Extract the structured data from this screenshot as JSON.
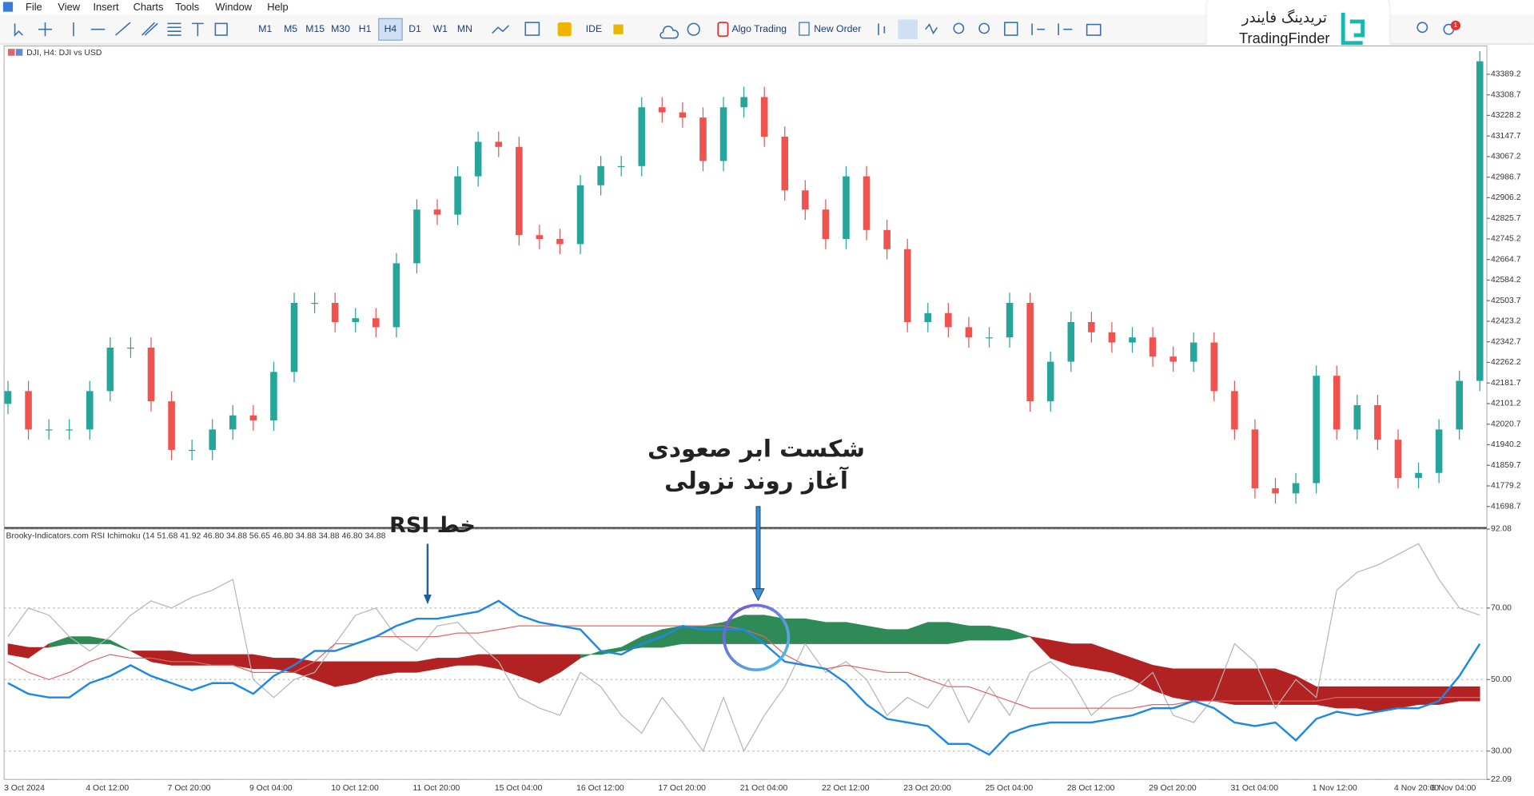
{
  "menu": [
    "File",
    "View",
    "Insert",
    "Charts",
    "Tools",
    "Window",
    "Help"
  ],
  "toolbar": {
    "timeframes": [
      "M1",
      "M5",
      "M15",
      "M30",
      "H1",
      "H4",
      "D1",
      "W1",
      "MN"
    ],
    "ide": "IDE",
    "algo_trading": "Algo Trading",
    "new_order": "New Order",
    "notification_count": 1
  },
  "logo": {
    "persian": "تریدینگ فایندر",
    "latin": "TradingFinder"
  },
  "annotations": {
    "cloud_break": "شکست ابر صعودی",
    "downtrend": "آغاز روند نزولی",
    "rsi_line": "خط RSI"
  },
  "chart_data": [
    {
      "type": "candlestick",
      "title": "DJI, H4:  DJI vs USD",
      "categories": [
        "3 Oct 2024",
        null,
        null,
        null,
        "4 Oct 12:00",
        null,
        null,
        null,
        "7 Oct 20:00",
        null,
        null,
        null,
        "9 Oct 04:00",
        null,
        null,
        null,
        "10 Oct 12:00",
        null,
        null,
        null,
        "11 Oct 20:00",
        null,
        null,
        null,
        "15 Oct 04:00",
        null,
        null,
        null,
        "16 Oct 12:00",
        null,
        null,
        null,
        "17 Oct 20:00",
        null,
        null,
        null,
        "21 Oct 04:00",
        null,
        null,
        null,
        "22 Oct 12:00",
        null,
        null,
        null,
        "23 Oct 20:00",
        null,
        null,
        null,
        "25 Oct 04:00",
        null,
        null,
        null,
        "28 Oct 12:00",
        null,
        null,
        null,
        "29 Oct 20:00",
        null,
        null,
        null,
        "31 Oct 04:00",
        null,
        null,
        null,
        "1 Nov 12:00",
        null,
        null,
        null,
        "4 Nov 20:00",
        null,
        null,
        null,
        "6 Nov 04:00"
      ],
      "open": [
        42100,
        42150,
        42000,
        42000,
        42000,
        42150,
        42320,
        42320,
        42110,
        41920,
        41920,
        42000,
        42055,
        42035,
        42225,
        42495,
        42495,
        42420,
        42435,
        42400,
        42650,
        42860,
        42840,
        42990,
        43125,
        43105,
        42760,
        42745,
        42725,
        42955,
        43030,
        43030,
        43260,
        43240,
        43220,
        43050,
        43260,
        43300,
        43145,
        42935,
        42860,
        42745,
        42990,
        42780,
        42705,
        42420,
        42455,
        42400,
        42360,
        42360,
        42495,
        42110,
        42265,
        42420,
        42380,
        42340,
        42360,
        42285,
        42265,
        42340,
        42150,
        42000,
        41770,
        41750,
        41790,
        42210,
        42000,
        42095,
        41960,
        41810,
        41830,
        42000,
        42190
      ],
      "high": [
        42190,
        42190,
        42040,
        42040,
        42190,
        42360,
        42360,
        42360,
        42150,
        41960,
        42040,
        42095,
        42095,
        42265,
        42535,
        42535,
        42535,
        42475,
        42475,
        42690,
        42900,
        42900,
        43030,
        43165,
        43165,
        43145,
        42800,
        42785,
        42995,
        43070,
        43070,
        43300,
        43300,
        43280,
        43260,
        43300,
        43340,
        43340,
        43185,
        42975,
        42900,
        43030,
        43030,
        42820,
        42745,
        42495,
        42495,
        42440,
        42400,
        42535,
        42535,
        42305,
        42460,
        42460,
        42420,
        42400,
        42400,
        42325,
        42380,
        42380,
        42190,
        42040,
        41810,
        41830,
        42250,
        42250,
        42135,
        42135,
        42000,
        41870,
        42040,
        42230,
        43480
      ],
      "low": [
        42060,
        41960,
        41960,
        41960,
        41960,
        42110,
        42280,
        42070,
        41880,
        41880,
        41880,
        41960,
        41995,
        41995,
        42185,
        42455,
        42380,
        42380,
        42360,
        42360,
        42610,
        42800,
        42800,
        42950,
        43065,
        42720,
        42705,
        42685,
        42685,
        42915,
        42990,
        42990,
        43200,
        43180,
        43010,
        43010,
        43220,
        43105,
        42895,
        42820,
        42705,
        42705,
        42740,
        42665,
        42380,
        42380,
        42360,
        42320,
        42320,
        42320,
        42070,
        42070,
        42225,
        42340,
        42300,
        42300,
        42245,
        42225,
        42225,
        42110,
        41960,
        41730,
        41710,
        41710,
        41750,
        41960,
        41960,
        41920,
        41770,
        41770,
        41790,
        41960,
        42150
      ],
      "close": [
        42150,
        42000,
        42000,
        42000,
        42150,
        42320,
        42320,
        42110,
        41920,
        41920,
        42000,
        42055,
        42035,
        42225,
        42495,
        42495,
        42420,
        42435,
        42400,
        42650,
        42860,
        42840,
        42990,
        43125,
        43105,
        42760,
        42745,
        42725,
        42955,
        43030,
        43030,
        43260,
        43240,
        43220,
        43050,
        43260,
        43300,
        43145,
        42935,
        42860,
        42745,
        42990,
        42780,
        42705,
        42420,
        42455,
        42400,
        42360,
        42360,
        42495,
        42110,
        42265,
        42420,
        42380,
        42340,
        42360,
        42285,
        42265,
        42340,
        42150,
        42000,
        41770,
        41750,
        41790,
        42210,
        42000,
        42095,
        41960,
        41810,
        41830,
        42000,
        42190,
        43440
      ],
      "up_color": "#26a69a",
      "down_color": "#ef5350",
      "ylim": [
        41622,
        43496
      ],
      "yticks": [
        43389.2,
        43308.7,
        43228.2,
        43147.7,
        43067.2,
        42986.7,
        42906.2,
        42825.7,
        42745.2,
        42664.7,
        42584.2,
        42503.7,
        42423.2,
        42342.7,
        42262.2,
        42181.7,
        42101.2,
        42020.7,
        41940.2,
        41859.7,
        41779.2,
        41698.7
      ],
      "grid": false
    },
    {
      "type": "line",
      "title": "Brooky-Indicators.com RSI Ichimoku (14 51.68 41.92 46.80 34.88 56.65 46.80 34.88 34.88 46.80 34.88",
      "series": [
        {
          "color": "#b5b5b5",
          "width": 1,
          "values": [
            62,
            70,
            68,
            62,
            58,
            62,
            68,
            72,
            70,
            73,
            75,
            78,
            50,
            45,
            50,
            52,
            60,
            68,
            70,
            62,
            58,
            65,
            66,
            60,
            55,
            45,
            42,
            40,
            52,
            48,
            40,
            35,
            45,
            38,
            30,
            45,
            30,
            40,
            48,
            60,
            52,
            55,
            50,
            40,
            45,
            42,
            50,
            38,
            48,
            40,
            52,
            55,
            50,
            40,
            45,
            47,
            52,
            40,
            38,
            45,
            60,
            55,
            42,
            50,
            45,
            75,
            80,
            82,
            85,
            88,
            78,
            70,
            68
          ]
        },
        {
          "color": "#e06666",
          "width": 1,
          "values": [
            55,
            52,
            50,
            52,
            55,
            57,
            56,
            56,
            55,
            55,
            54,
            54,
            52,
            52,
            52,
            55,
            60,
            60,
            62,
            62,
            62,
            62,
            63,
            63,
            64,
            65,
            65,
            65,
            65,
            65,
            65,
            65,
            65,
            65,
            65,
            65,
            64,
            62,
            57,
            54,
            53,
            54,
            53,
            52,
            52,
            50,
            48,
            48,
            46,
            44,
            42,
            42,
            42,
            42,
            42,
            42,
            43,
            43,
            44,
            44,
            44,
            44,
            44,
            44,
            44,
            45,
            45,
            45,
            45,
            45,
            45,
            45,
            45
          ]
        },
        {
          "color": "#1e88e5",
          "width": 2,
          "values": [
            49,
            46,
            45,
            45,
            49,
            51,
            54,
            51,
            49,
            47,
            49,
            49,
            46,
            51,
            54,
            58,
            58,
            60,
            62,
            65,
            67,
            67,
            68,
            69,
            72,
            68,
            66,
            65,
            64,
            58,
            57,
            60,
            62,
            65,
            64,
            64,
            64,
            60,
            55,
            54,
            53,
            49,
            43,
            39,
            38,
            37,
            32,
            32,
            29,
            35,
            37,
            38,
            38,
            38,
            39,
            40,
            42,
            42,
            44,
            42,
            38,
            37,
            38,
            33,
            39,
            41,
            40,
            41,
            42,
            42,
            44,
            51,
            60
          ]
        }
      ],
      "cloud": {
        "span_a": [
          57,
          56,
          60,
          62,
          62,
          61,
          58,
          55,
          54,
          54,
          54,
          54,
          53,
          53,
          52,
          50,
          48,
          49,
          51,
          52,
          52,
          53,
          54,
          54,
          53,
          51,
          49,
          52,
          56,
          58,
          59,
          62,
          64,
          65,
          65,
          66,
          68,
          68,
          67,
          67,
          66,
          66,
          65,
          64,
          64,
          66,
          66,
          65,
          65,
          64,
          62,
          56,
          54,
          53,
          52,
          50,
          47,
          45,
          44,
          44,
          43,
          43,
          43,
          43,
          43,
          42,
          42,
          41,
          42,
          43,
          43,
          44,
          44
        ],
        "span_b": [
          60,
          59,
          59,
          60,
          60,
          60,
          58,
          58,
          58,
          57,
          57,
          57,
          57,
          56,
          56,
          55,
          55,
          55,
          55,
          55,
          55,
          56,
          56,
          57,
          57,
          57,
          57,
          57,
          57,
          57,
          58,
          59,
          59,
          60,
          60,
          60,
          60,
          60,
          60,
          60,
          60,
          60,
          60,
          60,
          60,
          60,
          60,
          61,
          61,
          61,
          62,
          61,
          60,
          60,
          58,
          56,
          54,
          53,
          53,
          53,
          53,
          53,
          53,
          51,
          48,
          48,
          48,
          48,
          48,
          48,
          48,
          48,
          48
        ],
        "up_color": "#2e8b57",
        "down_color": "#b22222"
      },
      "ylim": [
        22.09,
        92.08
      ],
      "yticks": [
        92.08,
        {
          "value": 70,
          "label": "70.00"
        },
        {
          "value": 50,
          "label": "50.00"
        },
        {
          "value": 30,
          "label": "30.00"
        },
        22.09
      ],
      "grid": true
    }
  ]
}
